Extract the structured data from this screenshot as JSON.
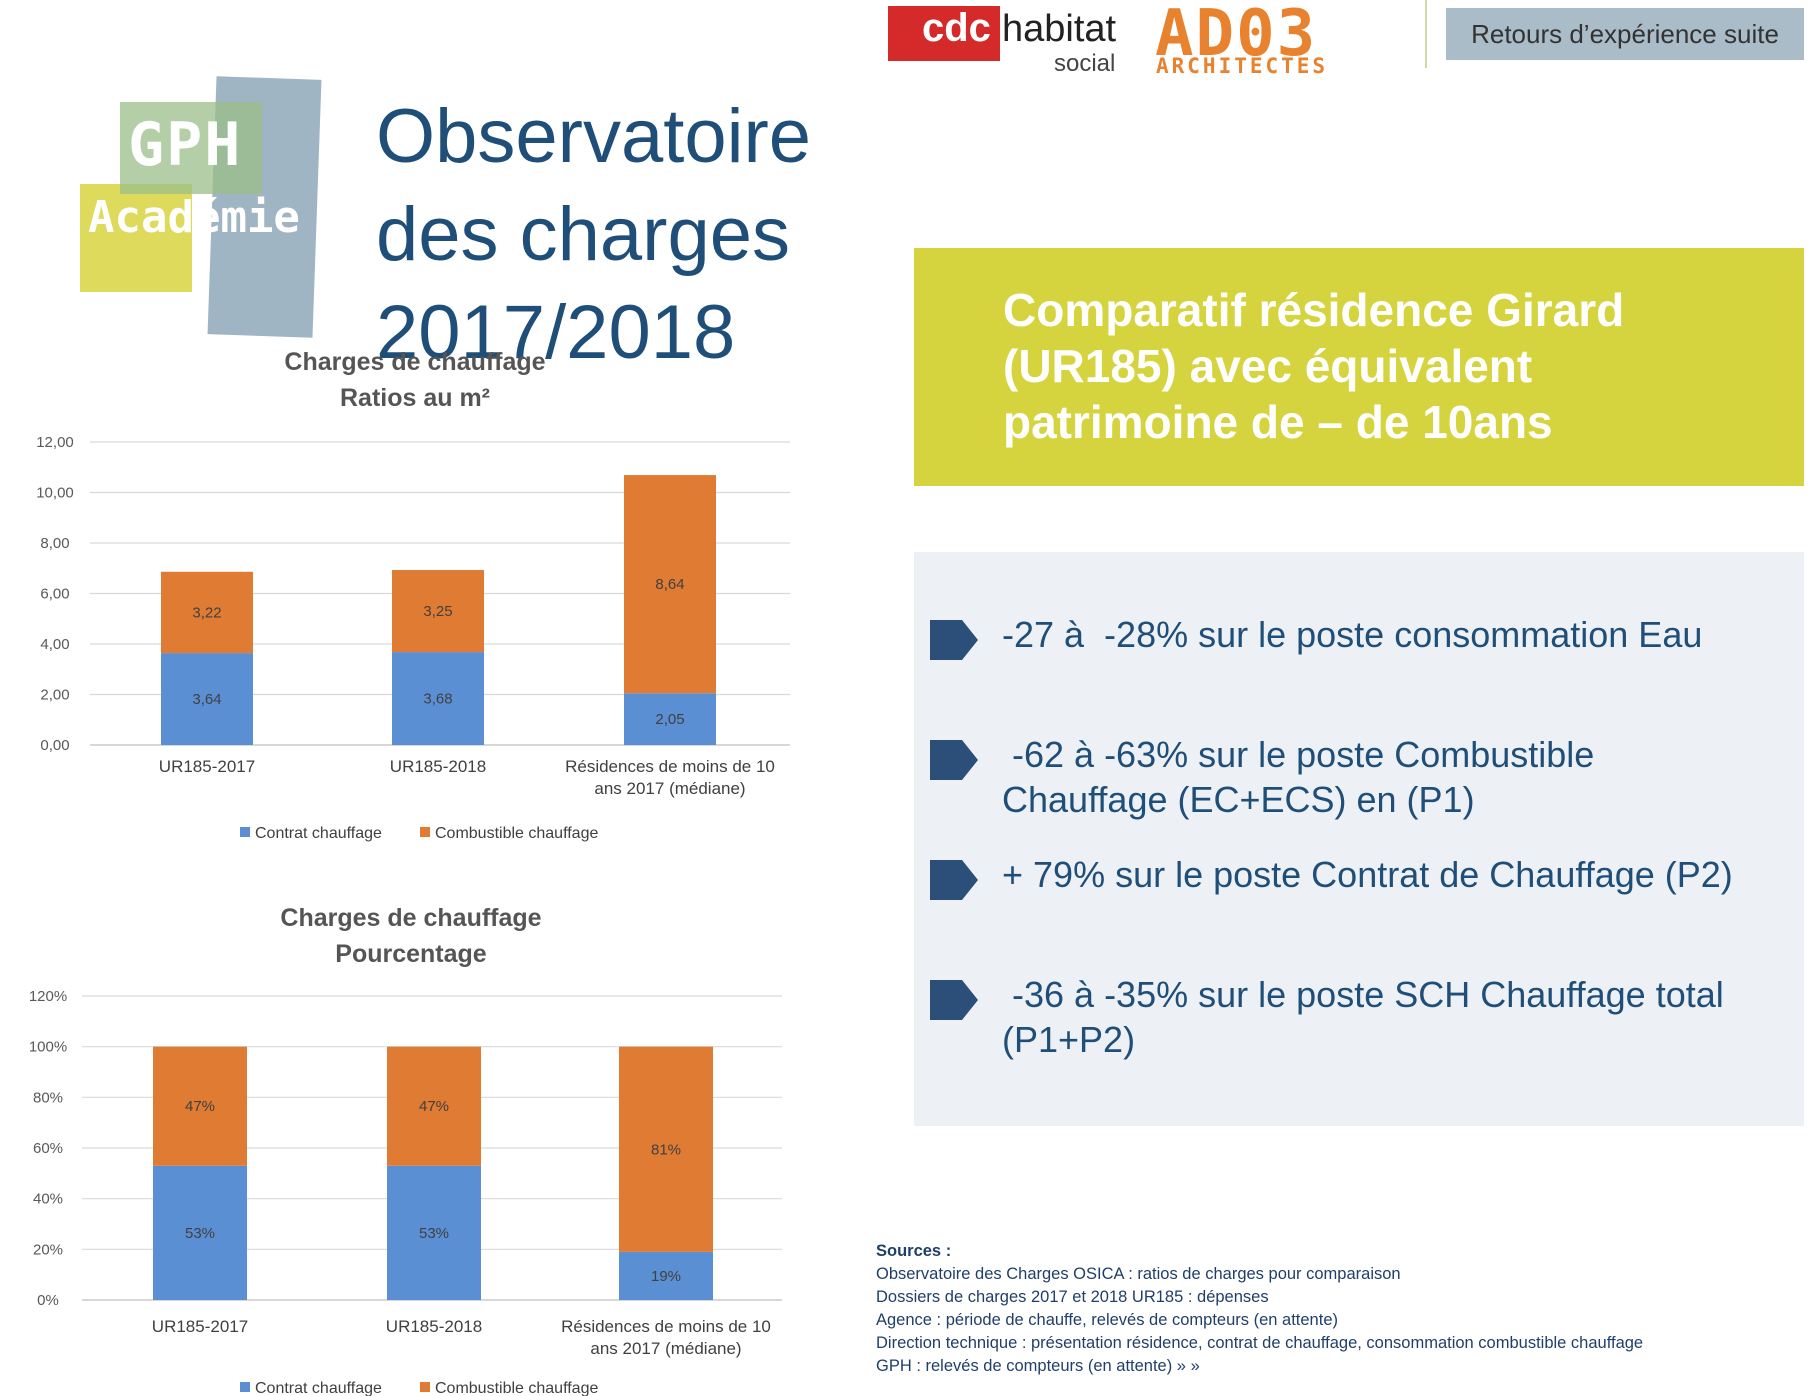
{
  "header": {
    "cdc_brand": "cdc",
    "cdc_habitat": "habitat",
    "cdc_social": "social",
    "architect_logo": "AD03",
    "architect_sub": "ARCHITECTES",
    "badge": "Retours d’expérience suite"
  },
  "logo": {
    "line1": "GPH",
    "line2": "Académie"
  },
  "page_title": "Observatoire des charges 2017/2018",
  "highlight": "Comparatif résidence Girard (UR185) avec équivalent patrimoine de – de 10ans",
  "bullets": [
    "-27 à  -28% sur le poste consommation Eau",
    " -62 à -63% sur le poste Combustible Chauffage (EC+ECS) en (P1)",
    "+ 79% sur le poste Contrat de Chauffage (P2)",
    " -36 à -35% sur le poste SCH Chauffage total (P1+P2)"
  ],
  "sources": {
    "heading": "Sources :",
    "lines": [
      "Observatoire des Charges OSICA : ratios de charges pour comparaison",
      "Dossiers de charges 2017 et 2018 UR185 : dépenses",
      "Agence : période de chauffe, relevés de compteurs (en attente)",
      "Direction technique : présentation résidence, contrat de chauffage, consommation combustible chauffage",
      "GPH : relevés de compteurs (en attente) » »"
    ]
  },
  "colors": {
    "contrat": "#5b8fd3",
    "combustible": "#e07b34",
    "title": "#1f4e79",
    "highlight": "#d5d43f"
  },
  "chart_data": [
    {
      "type": "bar",
      "stacked": true,
      "title": "Charges de chauffage",
      "subtitle": "Ratios au m²",
      "categories": [
        "UR185-2017",
        "UR185-2018",
        "Résidences de moins de 10 ans 2017 (médiane)"
      ],
      "series": [
        {
          "name": "Contrat chauffage",
          "values": [
            3.64,
            3.68,
            2.05
          ],
          "labels": [
            "3,64",
            "3,68",
            "2,05"
          ]
        },
        {
          "name": "Combustible chauffage",
          "values": [
            3.22,
            3.25,
            8.64
          ],
          "labels": [
            "3,22",
            "3,25",
            "8,64"
          ]
        }
      ],
      "yticks": [
        "0,00",
        "2,00",
        "4,00",
        "6,00",
        "8,00",
        "10,00",
        "12,00"
      ],
      "ylim": [
        0,
        12
      ],
      "grid": true,
      "legend": "bottom"
    },
    {
      "type": "bar",
      "stacked": true,
      "title": "Charges de chauffage",
      "subtitle": "Pourcentage",
      "categories": [
        "UR185-2017",
        "UR185-2018",
        "Résidences de moins de 10 ans 2017 (médiane)"
      ],
      "series": [
        {
          "name": "Contrat chauffage",
          "values": [
            53,
            53,
            19
          ],
          "labels": [
            "53%",
            "53%",
            "19%"
          ]
        },
        {
          "name": "Combustible chauffage",
          "values": [
            47,
            47,
            81
          ],
          "labels": [
            "47%",
            "47%",
            "81%"
          ]
        }
      ],
      "yticks": [
        "0%",
        "20%",
        "40%",
        "60%",
        "80%",
        "100%",
        "120%"
      ],
      "ylim": [
        0,
        120
      ],
      "grid": true,
      "legend": "bottom"
    }
  ]
}
